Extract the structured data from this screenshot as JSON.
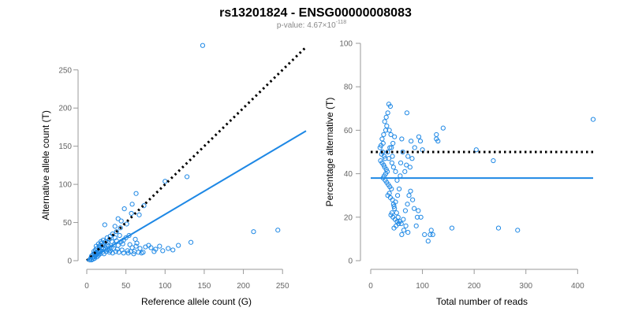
{
  "title": "rs13201824 - ENSG00000008083",
  "subtitle": {
    "text": "p-value: 4.67×10",
    "exponent": "-118"
  },
  "colors": {
    "points": "#1E88E5",
    "fit_line": "#1E88E5",
    "reference_line": "#000000"
  },
  "chart_data": [
    {
      "type": "scatter",
      "title": "",
      "xlabel": "Reference allele count (G)",
      "ylabel": "Alternative allele count (T)",
      "xlim": [
        0,
        280
      ],
      "ylim": [
        0,
        290
      ],
      "xticks": [
        0,
        50,
        100,
        150,
        200,
        250
      ],
      "yticks": [
        0,
        50,
        100,
        150,
        200,
        250
      ],
      "reference_line": {
        "from": [
          0,
          0
        ],
        "to": [
          280,
          280
        ],
        "style": "dotted"
      },
      "fit_line": {
        "from": [
          0,
          0
        ],
        "to": [
          280,
          170
        ]
      },
      "points": [
        [
          148,
          282
        ],
        [
          100,
          104
        ],
        [
          128,
          110
        ],
        [
          63,
          88
        ],
        [
          58,
          74
        ],
        [
          67,
          60
        ],
        [
          73,
          72
        ],
        [
          48,
          68
        ],
        [
          57,
          62
        ],
        [
          40,
          55
        ],
        [
          44,
          52
        ],
        [
          51,
          48
        ],
        [
          36,
          45
        ],
        [
          43,
          43
        ],
        [
          23,
          47
        ],
        [
          38,
          38
        ],
        [
          33,
          35
        ],
        [
          42,
          33
        ],
        [
          30,
          32
        ],
        [
          36,
          30
        ],
        [
          26,
          30
        ],
        [
          47,
          27
        ],
        [
          29,
          28
        ],
        [
          21,
          27
        ],
        [
          18,
          25
        ],
        [
          24,
          25
        ],
        [
          27,
          24
        ],
        [
          19,
          23
        ],
        [
          15,
          22
        ],
        [
          22,
          22
        ],
        [
          26,
          21
        ],
        [
          17,
          20
        ],
        [
          20,
          20
        ],
        [
          12,
          19
        ],
        [
          16,
          18
        ],
        [
          19,
          17
        ],
        [
          13,
          16
        ],
        [
          21,
          16
        ],
        [
          24,
          15
        ],
        [
          11,
          14
        ],
        [
          15,
          13
        ],
        [
          18,
          13
        ],
        [
          9,
          12
        ],
        [
          13,
          11
        ],
        [
          16,
          11
        ],
        [
          20,
          11
        ],
        [
          10,
          10
        ],
        [
          14,
          9
        ],
        [
          17,
          9
        ],
        [
          8,
          8
        ],
        [
          12,
          8
        ],
        [
          15,
          7
        ],
        [
          11,
          6
        ],
        [
          6,
          6
        ],
        [
          9,
          5
        ],
        [
          13,
          5
        ],
        [
          7,
          4
        ],
        [
          10,
          3
        ],
        [
          5,
          3
        ],
        [
          8,
          2
        ],
        [
          6,
          1
        ],
        [
          4,
          1
        ],
        [
          28,
          19
        ],
        [
          31,
          17
        ],
        [
          34,
          16
        ],
        [
          39,
          15
        ],
        [
          45,
          14
        ],
        [
          52,
          13
        ],
        [
          56,
          12
        ],
        [
          61,
          12
        ],
        [
          66,
          11
        ],
        [
          72,
          11
        ],
        [
          58,
          17
        ],
        [
          63,
          19
        ],
        [
          68,
          16
        ],
        [
          75,
          18
        ],
        [
          79,
          20
        ],
        [
          82,
          17
        ],
        [
          88,
          15
        ],
        [
          93,
          19
        ],
        [
          97,
          13
        ],
        [
          104,
          16
        ],
        [
          110,
          14
        ],
        [
          117,
          20
        ],
        [
          133,
          24
        ],
        [
          213,
          38
        ],
        [
          244,
          40
        ],
        [
          37,
          12
        ],
        [
          41,
          11
        ],
        [
          47,
          10
        ],
        [
          53,
          10
        ],
        [
          60,
          9
        ],
        [
          70,
          10
        ],
        [
          86,
          12
        ],
        [
          30,
          13
        ],
        [
          35,
          21
        ],
        [
          40,
          20
        ],
        [
          46,
          22
        ],
        [
          55,
          21
        ],
        [
          64,
          23
        ],
        [
          25,
          12
        ],
        [
          29,
          11
        ],
        [
          33,
          10
        ],
        [
          22,
          9
        ],
        [
          27,
          14
        ],
        [
          32,
          25
        ],
        [
          38,
          26
        ],
        [
          44,
          25
        ],
        [
          50,
          30
        ],
        [
          54,
          33
        ],
        [
          62,
          28
        ]
      ]
    },
    {
      "type": "scatter",
      "title": "",
      "xlabel": "Total number of reads",
      "ylabel": "Percentage alternative (T)",
      "xlim": [
        0,
        430
      ],
      "ylim": [
        0,
        100
      ],
      "xticks": [
        0,
        100,
        200,
        300,
        400
      ],
      "yticks": [
        0,
        20,
        40,
        60,
        80,
        100
      ],
      "reference_line": {
        "y": 50,
        "style": "dotted"
      },
      "fit_line": {
        "y": 38
      },
      "points": [
        [
          430,
          65
        ],
        [
          204,
          51
        ],
        [
          237,
          46
        ],
        [
          247,
          15
        ],
        [
          284,
          14
        ],
        [
          157,
          15
        ],
        [
          140,
          61
        ],
        [
          130,
          55
        ],
        [
          127,
          58
        ],
        [
          127,
          56
        ],
        [
          115,
          12
        ],
        [
          117,
          14
        ],
        [
          120,
          12
        ],
        [
          111,
          9
        ],
        [
          104,
          12
        ],
        [
          97,
          20
        ],
        [
          92,
          23
        ],
        [
          90,
          20
        ],
        [
          88,
          16
        ],
        [
          96,
          55
        ],
        [
          93,
          57
        ],
        [
          100,
          51
        ],
        [
          85,
          52
        ],
        [
          80,
          47
        ],
        [
          78,
          55
        ],
        [
          72,
          48
        ],
        [
          70,
          68
        ],
        [
          76,
          43
        ],
        [
          69,
          44
        ],
        [
          66,
          41
        ],
        [
          60,
          56
        ],
        [
          62,
          50
        ],
        [
          58,
          45
        ],
        [
          57,
          39
        ],
        [
          55,
          33
        ],
        [
          52,
          30
        ],
        [
          48,
          27
        ],
        [
          45,
          25
        ],
        [
          50,
          22
        ],
        [
          53,
          20
        ],
        [
          56,
          18
        ],
        [
          59,
          17
        ],
        [
          63,
          19
        ],
        [
          67,
          23
        ],
        [
          71,
          26
        ],
        [
          74,
          30
        ],
        [
          77,
          32
        ],
        [
          81,
          28
        ],
        [
          84,
          24
        ],
        [
          64,
          14
        ],
        [
          68,
          16
        ],
        [
          72,
          13
        ],
        [
          60,
          12
        ],
        [
          35,
          72
        ],
        [
          38,
          71
        ],
        [
          33,
          68
        ],
        [
          30,
          66
        ],
        [
          31,
          62
        ],
        [
          27,
          64
        ],
        [
          29,
          60
        ],
        [
          25,
          58
        ],
        [
          22,
          56
        ],
        [
          24,
          54
        ],
        [
          20,
          53
        ],
        [
          18,
          52
        ],
        [
          23,
          50
        ],
        [
          21,
          49
        ],
        [
          26,
          48
        ],
        [
          28,
          47
        ],
        [
          19,
          46
        ],
        [
          22,
          45
        ],
        [
          25,
          44
        ],
        [
          27,
          43
        ],
        [
          30,
          42
        ],
        [
          32,
          41
        ],
        [
          29,
          40
        ],
        [
          26,
          39
        ],
        [
          24,
          38
        ],
        [
          28,
          37
        ],
        [
          31,
          36
        ],
        [
          34,
          35
        ],
        [
          37,
          34
        ],
        [
          40,
          33
        ],
        [
          36,
          31
        ],
        [
          33,
          30
        ],
        [
          38,
          29
        ],
        [
          42,
          28
        ],
        [
          44,
          26
        ],
        [
          46,
          24
        ],
        [
          41,
          22
        ],
        [
          39,
          21
        ],
        [
          43,
          20
        ],
        [
          47,
          19
        ],
        [
          51,
          18
        ],
        [
          54,
          17
        ],
        [
          49,
          16
        ],
        [
          45,
          15
        ],
        [
          40,
          52
        ],
        [
          43,
          54
        ],
        [
          46,
          57
        ],
        [
          39,
          58
        ],
        [
          36,
          60
        ],
        [
          42,
          48
        ],
        [
          35,
          47
        ],
        [
          33,
          50
        ],
        [
          37,
          52
        ],
        [
          41,
          45
        ],
        [
          44,
          43
        ],
        [
          48,
          41
        ],
        [
          51,
          37
        ]
      ]
    }
  ]
}
